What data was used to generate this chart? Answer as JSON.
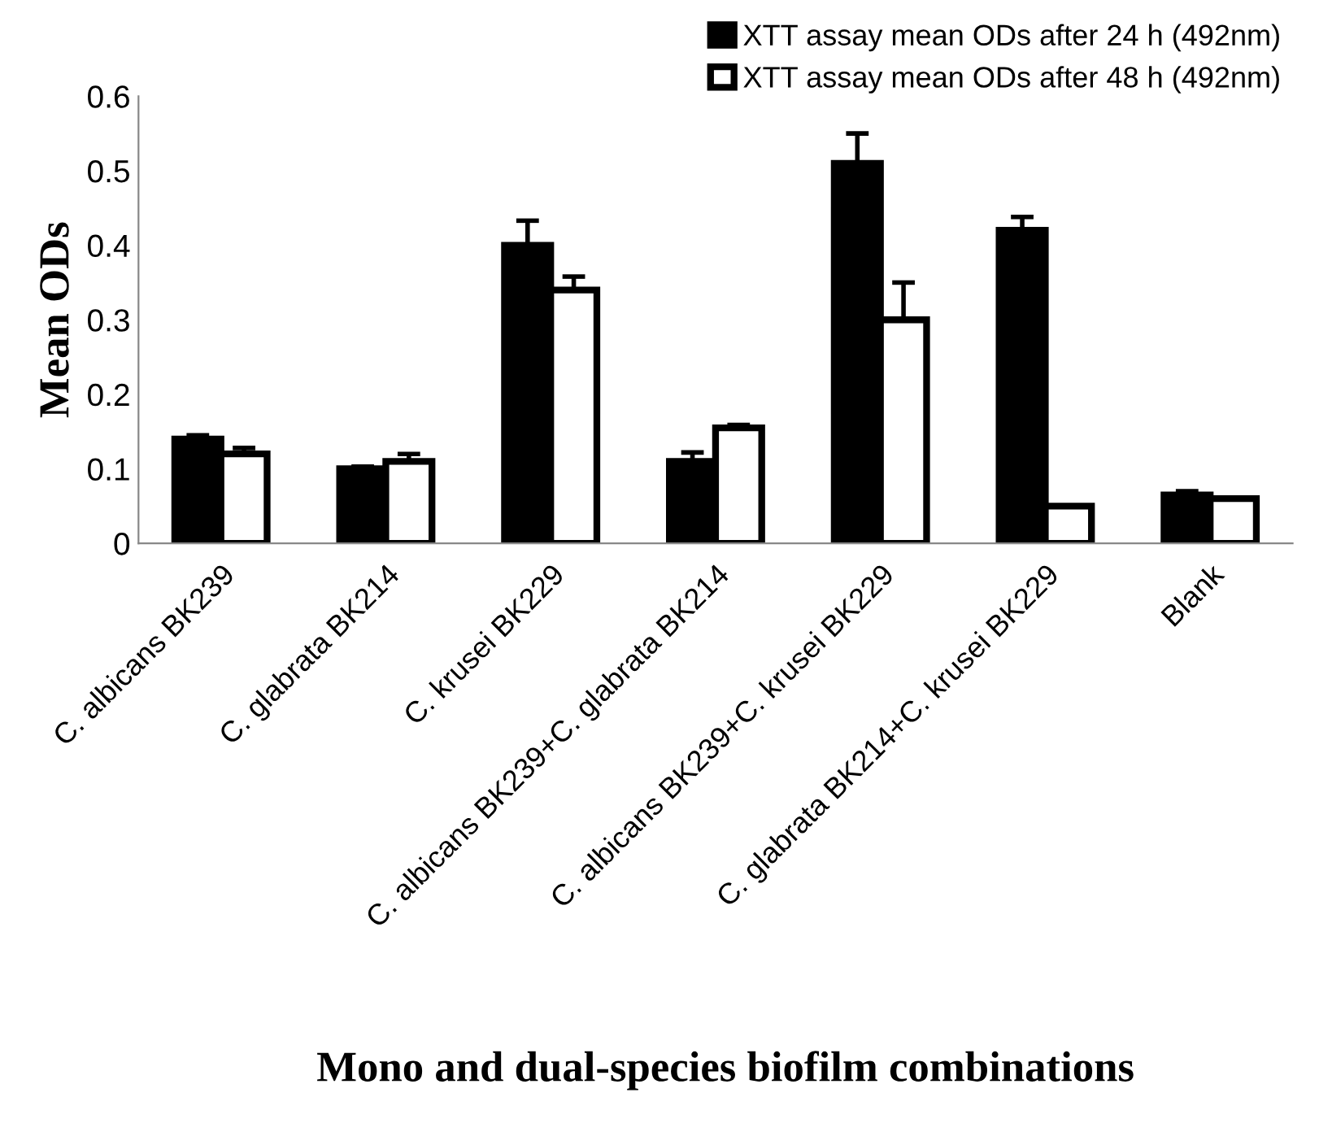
{
  "chart_data": {
    "type": "bar",
    "xlabel": "Mono and dual-species biofilm combinations",
    "ylabel": "Mean ODs",
    "categories": [
      "C. albicans BK239",
      "C. glabrata BK214",
      "C. krusei BK229",
      "C. albicans BK239+C. glabrata BK214",
      "C. albicans BK239+C. krusei BK229",
      "C. glabrata BK214+C. krusei BK229",
      "Blank"
    ],
    "series": [
      {
        "name": "XTT assay mean ODs after 24 h (492nm)",
        "color": "#000000",
        "values": [
          0.14,
          0.1,
          0.4,
          0.11,
          0.51,
          0.42,
          0.065
        ],
        "errors": [
          0.005,
          0.003,
          0.033,
          0.012,
          0.04,
          0.018,
          0.005
        ]
      },
      {
        "name": "XTT assay mean ODs after 48 h (492nm)",
        "color": "#ffffff",
        "values": [
          0.12,
          0.11,
          0.34,
          0.155,
          0.3,
          0.05,
          0.06
        ],
        "errors": [
          0.008,
          0.01,
          0.018,
          0.004,
          0.05,
          null,
          null
        ]
      }
    ],
    "ylim": [
      0,
      0.6
    ],
    "yticks": [
      {
        "value": 0,
        "label": "0"
      },
      0.1,
      0.2,
      0.3,
      0.4,
      0.5,
      0.6
    ],
    "grid": false,
    "legend": "top right"
  }
}
